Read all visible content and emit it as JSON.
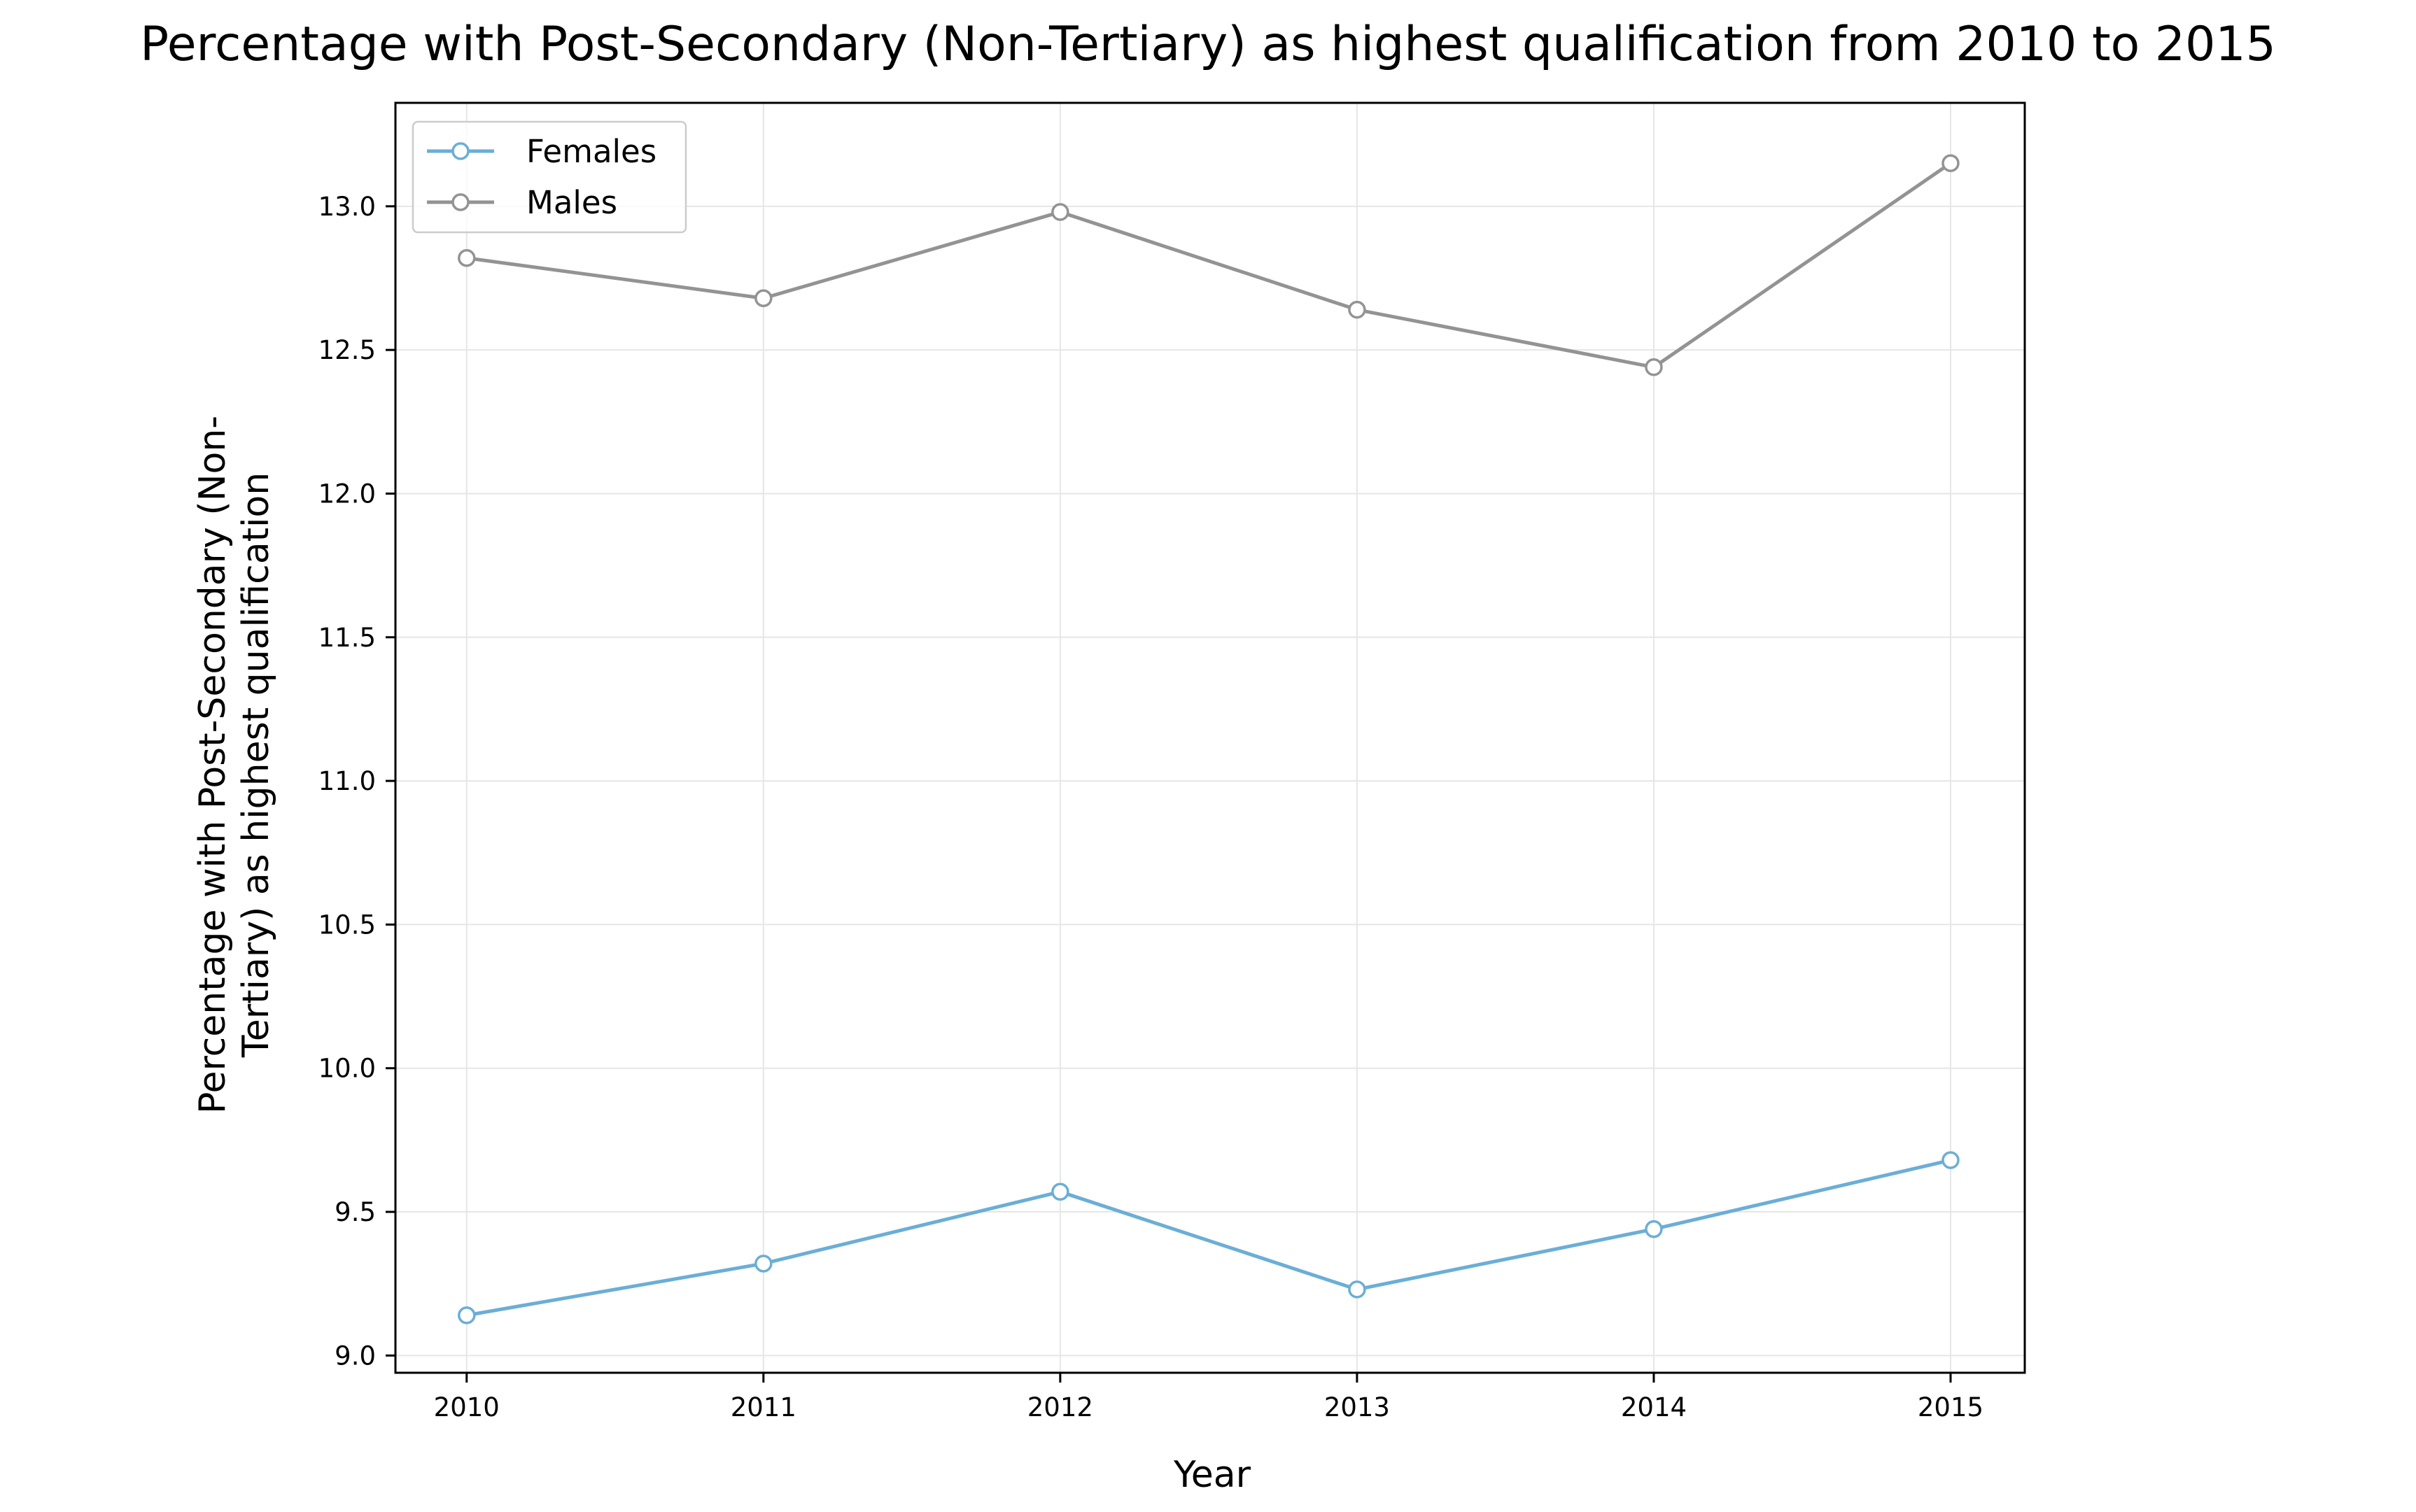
{
  "chart_data": {
    "type": "line",
    "title": "Percentage with Post-Secondary (Non-Tertiary) as highest qualification from 2010 to 2015",
    "xlabel": "Year",
    "ylabel": [
      "Percentage with Post-Secondary (Non-",
      "Tertiary) as highest qualification"
    ],
    "x": [
      2010,
      2011,
      2012,
      2013,
      2014,
      2015
    ],
    "x_tick_labels": [
      "2010",
      "2011",
      "2012",
      "2013",
      "2014",
      "2015"
    ],
    "xlim": [
      2009.76,
      2015.25
    ],
    "ylim": [
      8.94,
      13.36
    ],
    "y_ticks": [
      9.0,
      9.5,
      10.0,
      10.5,
      11.0,
      11.5,
      12.0,
      12.5,
      13.0
    ],
    "y_tick_labels": [
      "9.0",
      "9.5",
      "10.0",
      "10.5",
      "11.0",
      "11.5",
      "12.0",
      "12.5",
      "13.0"
    ],
    "grid": true,
    "legend_position": "top-left",
    "series": [
      {
        "name": "Females",
        "color": "#6baed6",
        "marker": "open-circle",
        "values": [
          9.14,
          9.32,
          9.57,
          9.23,
          9.44,
          9.68
        ]
      },
      {
        "name": "Males",
        "color": "#939393",
        "marker": "open-circle",
        "values": [
          12.82,
          12.68,
          12.98,
          12.64,
          12.44,
          13.15
        ]
      }
    ]
  }
}
